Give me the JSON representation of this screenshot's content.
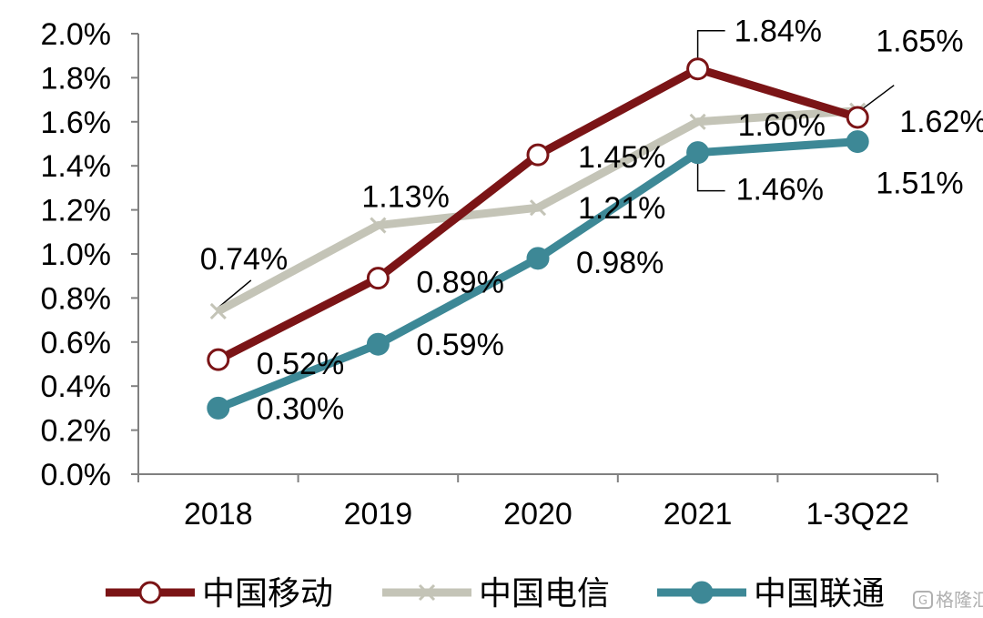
{
  "chart_data": {
    "type": "line",
    "categories": [
      "2018",
      "2019",
      "2020",
      "2021",
      "1-3Q22"
    ],
    "ylim": [
      0,
      2.0
    ],
    "yticks": [
      "0.0%",
      "0.2%",
      "0.4%",
      "0.6%",
      "0.8%",
      "1.0%",
      "1.2%",
      "1.4%",
      "1.6%",
      "1.8%",
      "2.0%"
    ],
    "legend_position": "bottom",
    "grid": false,
    "series": [
      {
        "name": "中国移动",
        "color": "#7B1416",
        "marker": "hollow-circle",
        "values": [
          0.52,
          0.89,
          1.45,
          1.84,
          1.62
        ],
        "labels": [
          "0.52%",
          "0.89%",
          "1.45%",
          "1.84%",
          "1.62%"
        ]
      },
      {
        "name": "中国电信",
        "color": "#C4C4B7",
        "marker": "x",
        "values": [
          0.74,
          1.13,
          1.21,
          1.6,
          1.65
        ],
        "labels": [
          "0.74%",
          "1.13%",
          "1.21%",
          "1.60%",
          "1.65%"
        ]
      },
      {
        "name": "中国联通",
        "color": "#3D8896",
        "marker": "filled-circle",
        "values": [
          0.3,
          0.59,
          0.98,
          1.46,
          1.51
        ],
        "labels": [
          "0.30%",
          "0.59%",
          "0.98%",
          "1.46%",
          "1.51%"
        ]
      }
    ]
  },
  "watermark": {
    "text": "格隆汇",
    "icon": "gelonghui-logo-icon"
  }
}
